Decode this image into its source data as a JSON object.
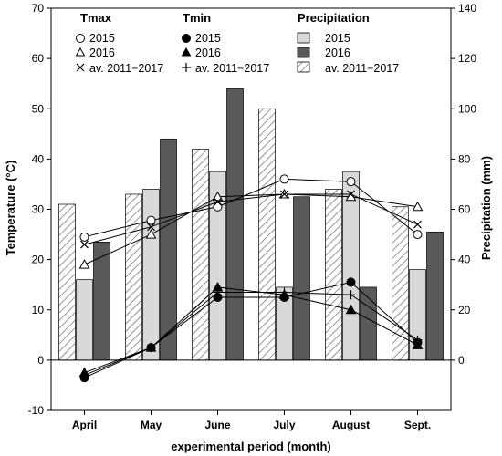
{
  "chart_data": {
    "type": "bar",
    "xlabel": "experimental period (month)",
    "ylabel_left": "Temperature (°C)",
    "ylabel_right": "Precipitation (mm)",
    "ylim_left": [
      -10,
      70
    ],
    "ylim_right": [
      0,
      140
    ],
    "yticks_left": [
      "-10",
      "0",
      "10",
      "20",
      "30",
      "40",
      "50",
      "60",
      "70"
    ],
    "yticks_right": [
      "0",
      "20",
      "40",
      "60",
      "80",
      "100",
      "120",
      "140"
    ],
    "categories": [
      "April",
      "May",
      "June",
      "July",
      "August",
      "Sept."
    ],
    "precipitation": [
      {
        "name": "av. 2011−2017",
        "color": "#ffffff",
        "pattern": "hatch",
        "values": [
          62,
          66,
          84,
          100,
          68,
          61
        ]
      },
      {
        "name": "2015",
        "color": "#d9d9d9",
        "values": [
          32,
          68,
          75,
          29,
          75,
          36
        ]
      },
      {
        "name": "2016",
        "color": "#595959",
        "values": [
          47,
          88,
          108,
          65,
          29,
          51
        ]
      }
    ],
    "tmax": [
      {
        "name": "2015",
        "marker": "circle-open",
        "values": [
          24.5,
          27.8,
          30.5,
          36,
          35.5,
          25
        ]
      },
      {
        "name": "2016",
        "marker": "triangle-open",
        "values": [
          19,
          25,
          32.5,
          33,
          32.5,
          30.5
        ]
      },
      {
        "name": "av. 2011−2017",
        "marker": "x",
        "values": [
          23,
          26.5,
          31.5,
          33,
          33,
          27
        ]
      }
    ],
    "tmin": [
      {
        "name": "2015",
        "marker": "circle-filled",
        "values": [
          -3.5,
          2.5,
          12.5,
          12.5,
          15.5,
          3.5
        ]
      },
      {
        "name": "2016",
        "marker": "triangle-filled",
        "values": [
          -2.5,
          2.5,
          14.5,
          13,
          10,
          3
        ]
      },
      {
        "name": "av. 2011−2017",
        "marker": "plus",
        "values": [
          -3,
          2.5,
          13.5,
          13.5,
          13,
          4
        ]
      }
    ],
    "legend": {
      "tmax_title": "Tmax",
      "tmin_title": "Tmin",
      "precip_title": "Precipitation",
      "entries": [
        "2015",
        "2016",
        "av. 2011−2017"
      ]
    }
  }
}
